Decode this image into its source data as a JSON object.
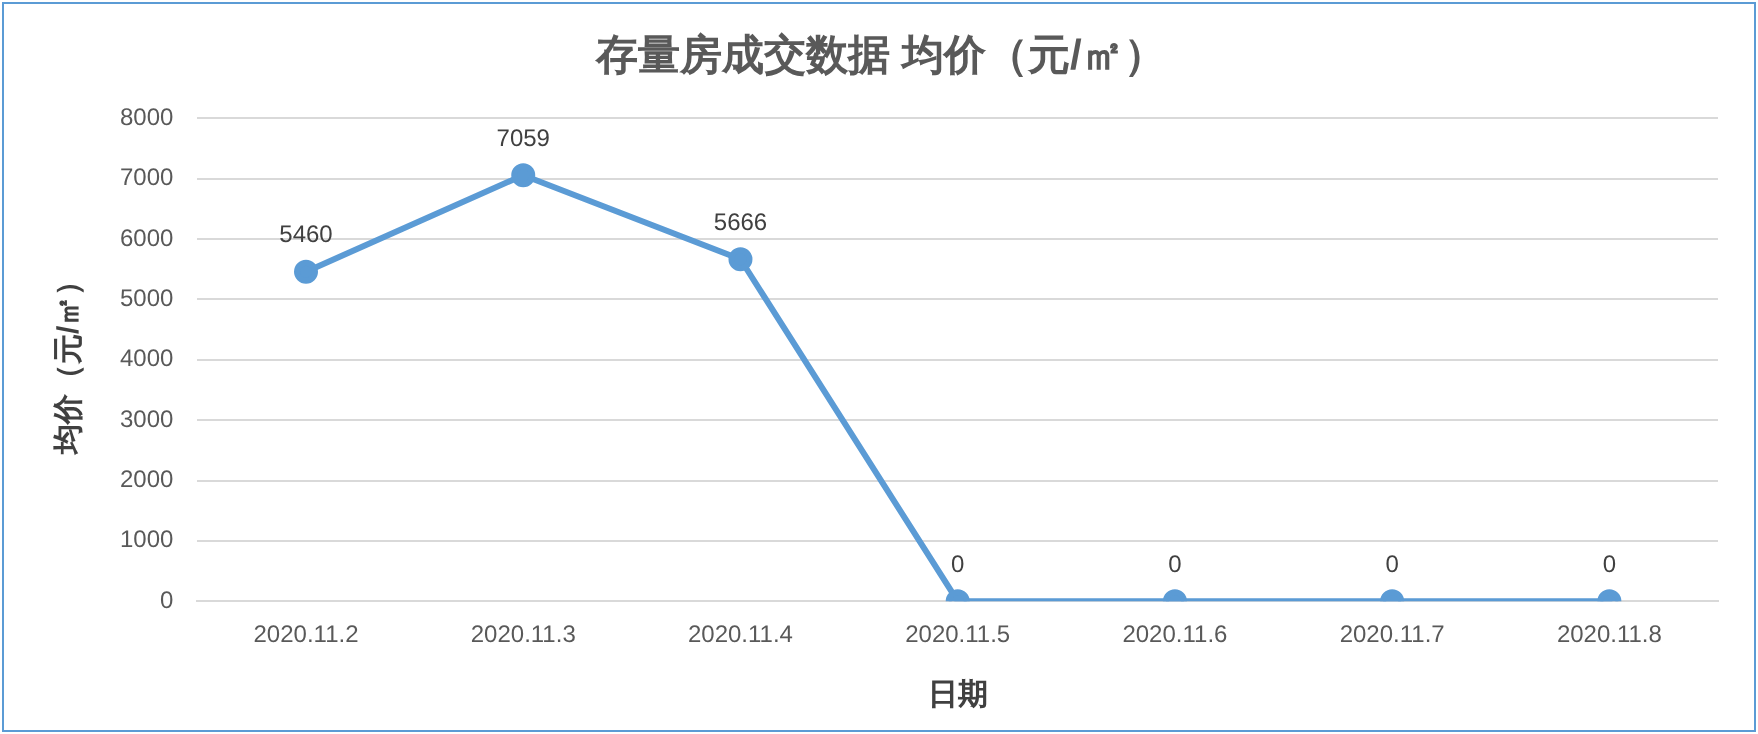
{
  "chart_data": {
    "type": "line",
    "title": "存量房成交数据 均价（元/㎡）",
    "xlabel": "日期",
    "ylabel": "均价（元/㎡）",
    "categories": [
      "2020.11.2",
      "2020.11.3",
      "2020.11.4",
      "2020.11.5",
      "2020.11.6",
      "2020.11.7",
      "2020.11.8"
    ],
    "series": [
      {
        "color": "#5b9bd5",
        "values": [
          5460,
          7059,
          5666,
          0,
          0,
          0,
          0
        ]
      }
    ],
    "ylim": [
      0,
      8000
    ],
    "yticks": [
      0,
      1000,
      2000,
      3000,
      4000,
      5000,
      6000,
      7000,
      8000
    ],
    "grid": "y",
    "legend": false,
    "marker": "circle",
    "line_style": "solid",
    "data_labels": true
  }
}
